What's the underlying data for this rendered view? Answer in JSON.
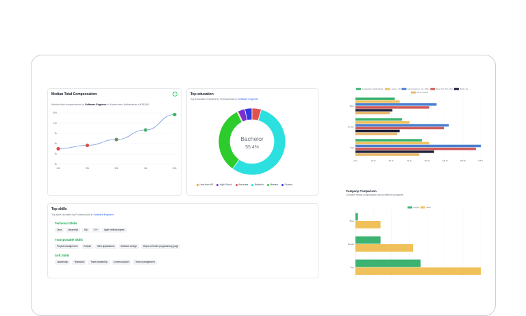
{
  "compensation": {
    "title": "Median Total Compensation",
    "subtitle_prefix": "Median total compensation for",
    "role": "Software Engineer",
    "subtitle_suffix": "in Amsterdam, Netherlands is €58,500",
    "info_icon": "i"
  },
  "education": {
    "title": "Top education",
    "subtitle_prefix": "Top education revealed by Professionals in",
    "role": "Software Engineer",
    "center_label": "Bachelor",
    "center_value": "55.4%"
  },
  "skills": {
    "title": "Top skills",
    "subtitle_prefix": "Top skills revealed by Professionals in",
    "role": "Software Engineer",
    "groups": [
      {
        "name": "Technical Skills",
        "items": [
          "Java",
          "Javascript",
          "Sql",
          "C++",
          "Agile methodologies"
        ]
      },
      {
        "name": "Transposable Skills",
        "items": [
          "Project management",
          "Eclipse",
          "Web applications",
          "Software design",
          "Object-oriented programming (oop)"
        ]
      },
      {
        "name": "Soft Skills",
        "items": [
          "Leadership",
          "Teamwork",
          "Team leadership",
          "Communication",
          "Team management"
        ]
      }
    ]
  },
  "company": {
    "title": "Company Comparison",
    "subtitle": "Compare median compensation across different companies"
  },
  "chart_data": [
    {
      "type": "line",
      "x": [
        "10k",
        "20k",
        "30k",
        "40k",
        "50k"
      ],
      "y": [
        4.5,
        5.5,
        7.2,
        10,
        14.5
      ],
      "ticks_y": [
        "15%",
        "12k",
        "9k",
        "6k",
        "3k",
        "0k"
      ],
      "ticks_x": [
        "10k",
        "20k",
        "30k",
        "40k",
        "50k"
      ],
      "point_colors": [
        "#e04848",
        "#d9534f",
        "#7a8c5e",
        "#4caf6a",
        "#3fb861"
      ],
      "line_color": "#7096d8"
    },
    {
      "type": "pie",
      "donut": true,
      "labels": [
        "Less than HS",
        "High School",
        "Associate",
        "Bachelor",
        "Masters",
        "Doctors"
      ],
      "values": [
        0.5,
        3.5,
        4.5,
        55.4,
        32.6,
        3.5
      ],
      "colors": [
        "#f0a33a",
        "#7c2fd0",
        "#e05252",
        "#2de0e0",
        "#2ccc2c",
        "#2d3be0"
      ]
    },
    {
      "type": "bar",
      "orientation": "horizontal",
      "categories": [
        "Base",
        "Median",
        "High"
      ],
      "series": [
        {
          "name": "Amsterdam, Netherlands",
          "color": "#3cb371",
          "values": [
            80,
            95,
            135
          ]
        },
        {
          "name": "London, UK",
          "color": "#f0c05a",
          "values": [
            90,
            110,
            150
          ]
        },
        {
          "name": "San Francisco, CA, USA",
          "color": "#4a7fd0",
          "values": [
            165,
            190,
            255
          ]
        },
        {
          "name": "New York, NY, USA",
          "color": "#d05a5a",
          "values": [
            150,
            180,
            245
          ]
        },
        {
          "name": "Berlin, De",
          "color": "#1f1f3a",
          "values": [
            75,
            90,
            160
          ]
        },
        {
          "name": "Paris, France",
          "color": "#e8b86a",
          "values": [
            70,
            85,
            130
          ]
        }
      ],
      "ticks_x": [
        "0.0k",
        "25.0k",
        "50.0k",
        "75.0k",
        "100.0k",
        "125.0k",
        "150.0k",
        "175.0k"
      ],
      "xlim": [
        0,
        255
      ]
    },
    {
      "type": "bar",
      "orientation": "horizontal",
      "categories": [
        "Base",
        "Median",
        "High"
      ],
      "series": [
        {
          "name": "google",
          "color": "#3cb371",
          "values": [
            2,
            20,
            52
          ]
        },
        {
          "name": "meta",
          "color": "#f0c05a",
          "values": [
            20,
            46,
            100
          ]
        }
      ],
      "xlim": [
        0,
        100
      ]
    }
  ]
}
